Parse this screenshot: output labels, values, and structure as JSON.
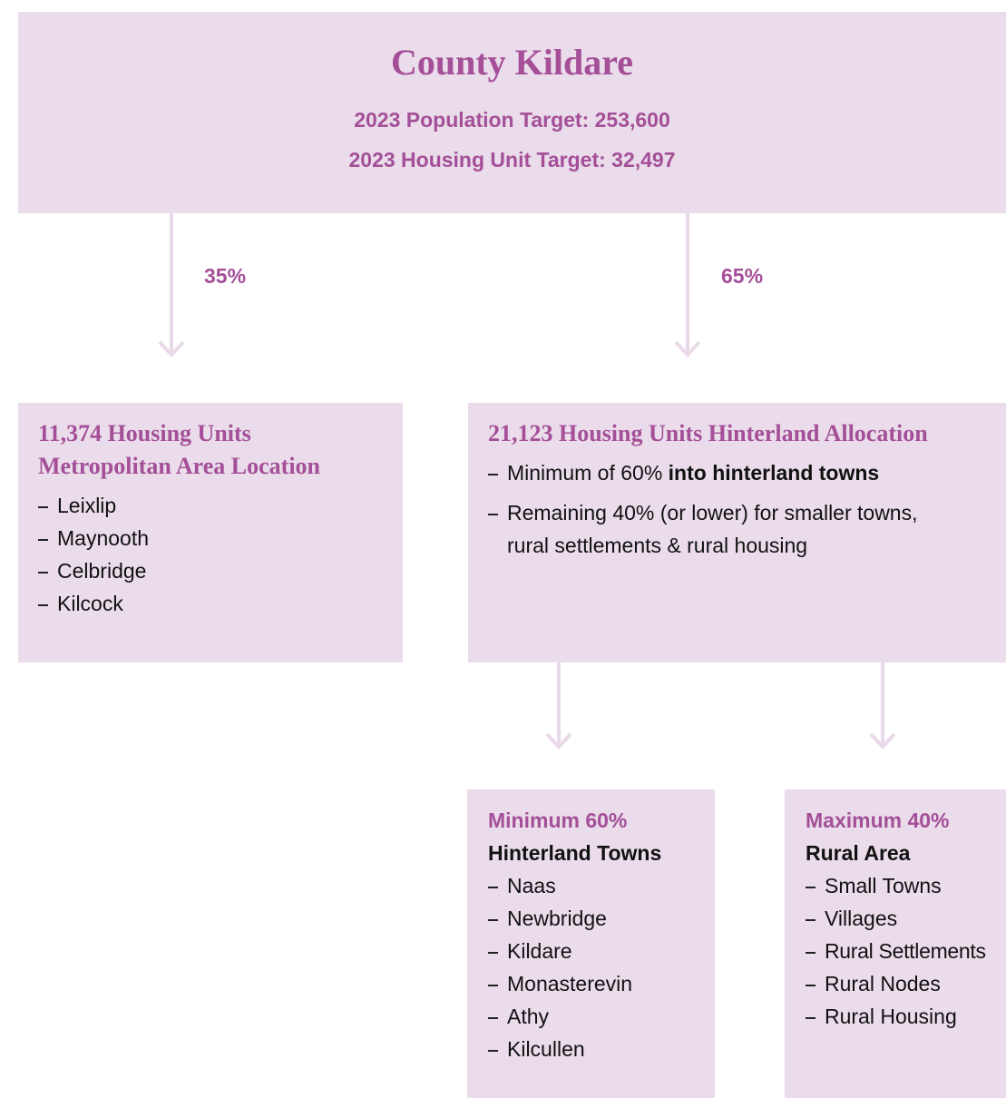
{
  "top": {
    "title": "County Kildare",
    "population_target": "2023 Population Target: 253,600",
    "housing_target": "2023 Housing Unit Target: 32,497"
  },
  "arrows": [
    {
      "label": "35%"
    },
    {
      "label": "65%"
    }
  ],
  "metropolitan": {
    "title_lines": [
      "11,374 Housing Units",
      "Metropolitan Area Location"
    ],
    "items": [
      "Leixlip",
      "Maynooth",
      "Celbridge",
      "Kilcock"
    ]
  },
  "hinterland": {
    "title": "21,123 Housing Units Hinterland Allocation",
    "items": [
      {
        "text": "Minimum of 60%",
        "bold_text": "into hinterland towns"
      },
      {
        "lines": [
          "Remaining 40% (or lower) for smaller towns,",
          "rural settlements & rural housing"
        ]
      }
    ]
  },
  "towns": {
    "share": "Minimum 60%",
    "title": "Hinterland Towns",
    "items": [
      "Naas",
      "Newbridge",
      "Kildare",
      "Monasterevin",
      "Athy",
      "Kilcullen"
    ]
  },
  "rural": {
    "share": "Maximum 40%",
    "title": "Rural Area",
    "items": [
      "Small Towns",
      "Villages",
      "Rural Settlements",
      "Rural Nodes",
      "Rural Housing"
    ]
  }
}
